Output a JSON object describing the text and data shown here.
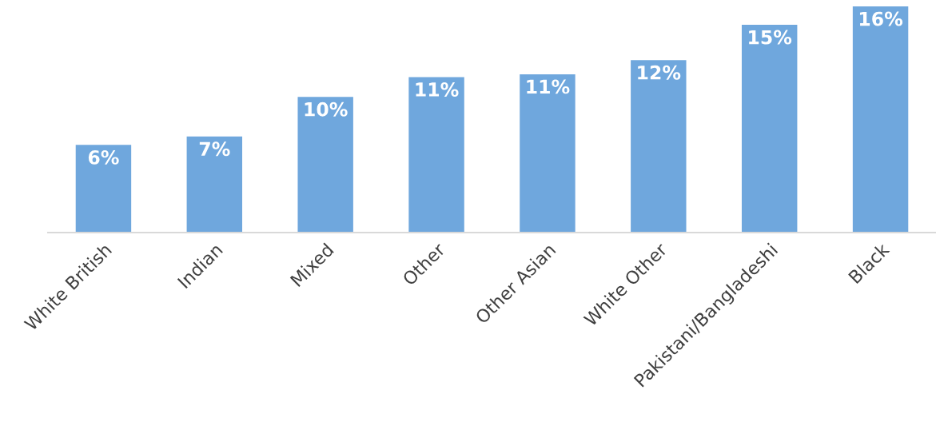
{
  "chart_data": {
    "type": "bar",
    "categories": [
      "White British",
      "Indian",
      "Mixed",
      "Other",
      "Other Asian",
      "White Other",
      "Pakistani/Bangladeshi",
      "Black"
    ],
    "values": [
      6.2,
      6.8,
      9.6,
      11.0,
      11.2,
      12.2,
      14.7,
      16.0
    ],
    "value_labels": [
      "6%",
      "7%",
      "10%",
      "11%",
      "11%",
      "12%",
      "15%",
      "16%"
    ],
    "color": "#6fa7dd",
    "grid": false,
    "legend": false
  }
}
